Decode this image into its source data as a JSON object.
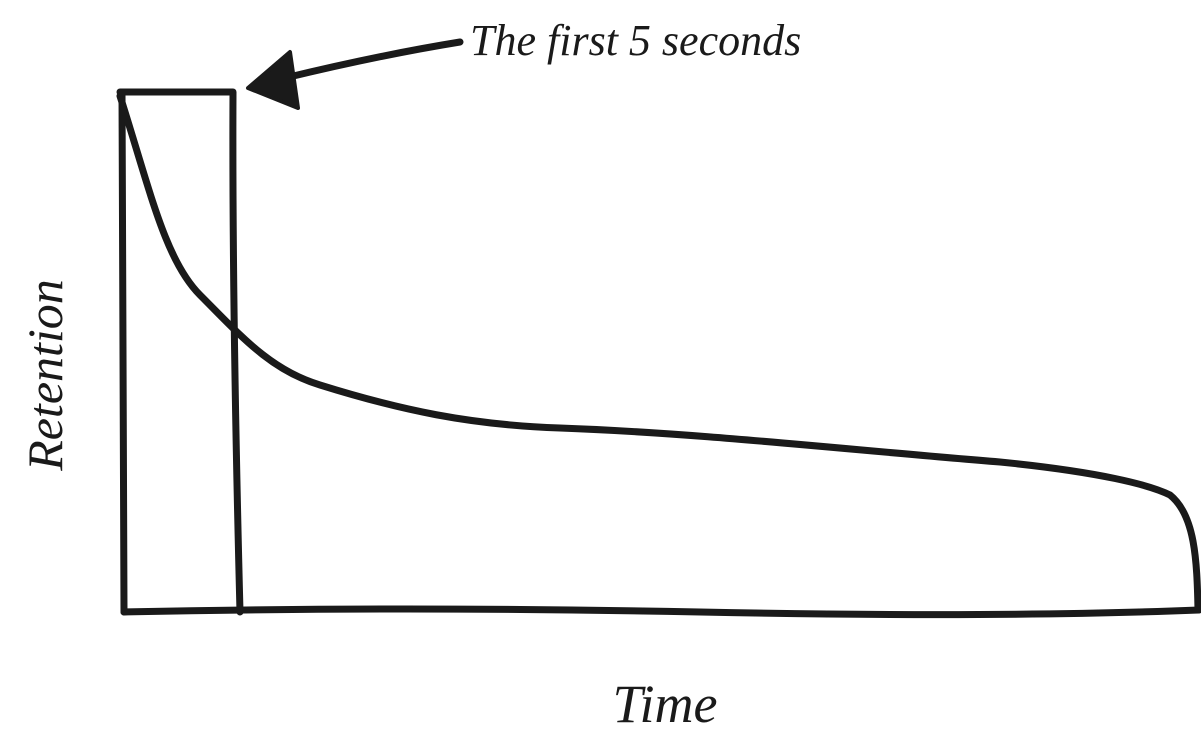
{
  "annotation": "The first 5 seconds",
  "axes": {
    "y_label": "Retention",
    "x_label": "Time"
  }
}
